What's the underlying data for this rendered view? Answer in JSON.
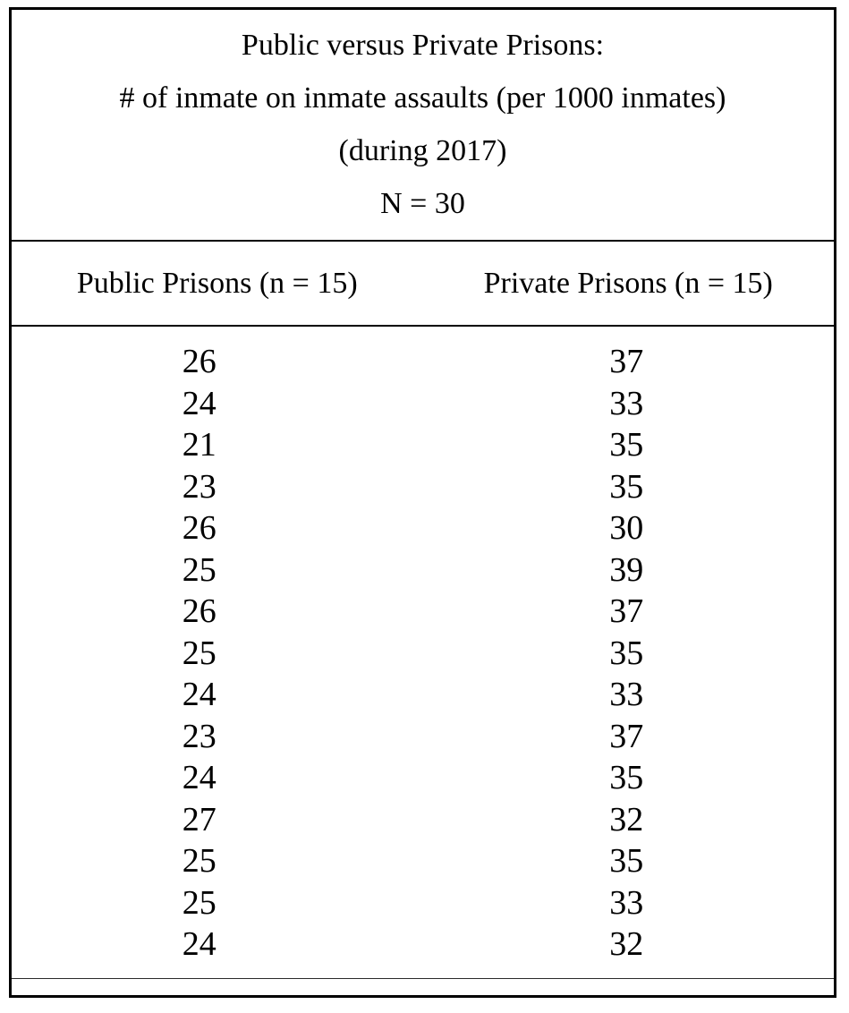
{
  "title": {
    "line1": "Public versus Private Prisons:",
    "line2": "# of inmate on inmate assaults (per 1000 inmates)",
    "line3": "(during 2017)",
    "line4": "N = 30"
  },
  "table": {
    "columns": [
      {
        "header": "Public Prisons (n = 15)",
        "values": [
          26,
          24,
          21,
          23,
          26,
          25,
          26,
          25,
          24,
          23,
          24,
          27,
          25,
          25,
          24
        ]
      },
      {
        "header": "Private Prisons (n = 15)",
        "values": [
          37,
          33,
          35,
          35,
          30,
          39,
          37,
          35,
          33,
          37,
          35,
          32,
          35,
          33,
          32
        ]
      }
    ]
  },
  "colors": {
    "text": "#000000",
    "background": "#ffffff",
    "border": "#000000"
  },
  "chart_data": {
    "type": "table",
    "title": "Public versus Private Prisons: # of inmate on inmate assaults (per 1000 inmates) (during 2017) N = 30",
    "year_note": "(during 2017)",
    "total_n": 30,
    "categories": [
      "Public Prisons (n = 15)",
      "Private Prisons (n = 15)"
    ],
    "series": [
      {
        "name": "Public Prisons (n = 15)",
        "values": [
          26,
          24,
          21,
          23,
          26,
          25,
          26,
          25,
          24,
          23,
          24,
          27,
          25,
          25,
          24
        ]
      },
      {
        "name": "Private Prisons (n = 15)",
        "values": [
          37,
          33,
          35,
          35,
          30,
          39,
          37,
          35,
          33,
          37,
          35,
          32,
          35,
          33,
          32
        ]
      }
    ],
    "layout": "two-column data listing inside bordered box with title block, header rule lines, and empty footer strip"
  }
}
